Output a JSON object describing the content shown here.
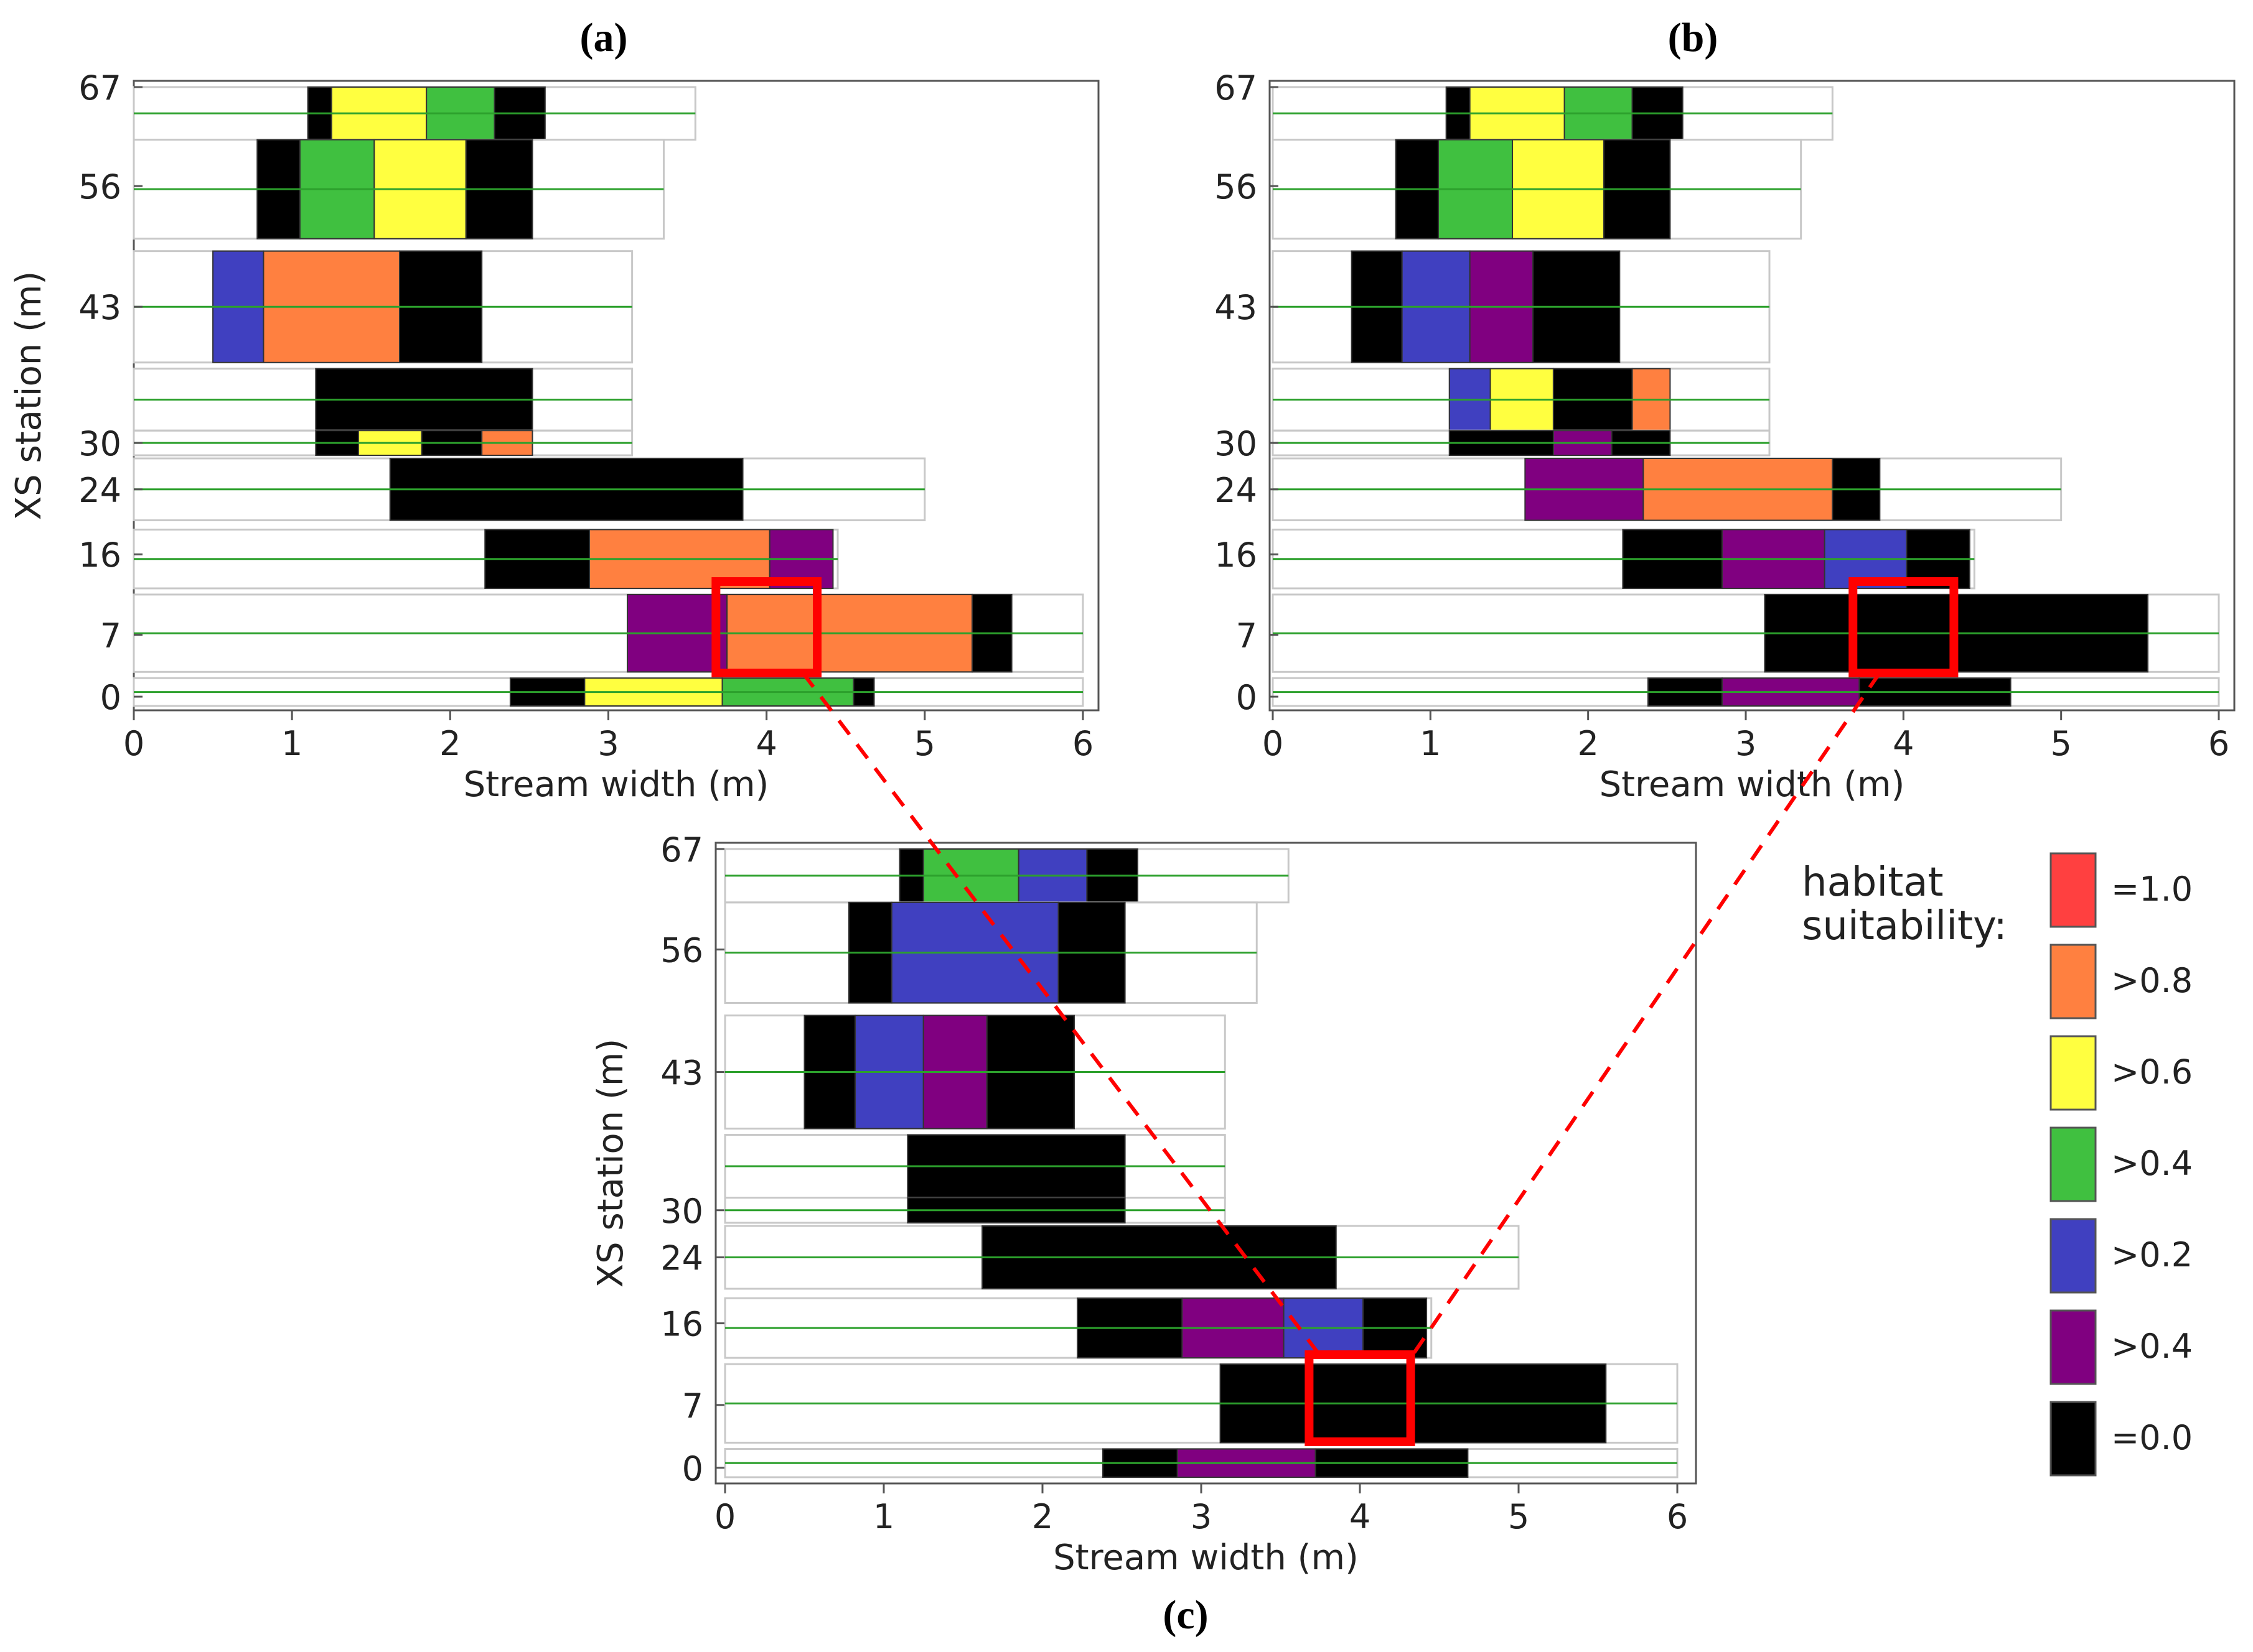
{
  "colors": {
    "c1": "#ff4040",
    "c08": "#ff8040",
    "c06": "#ffff40",
    "c04": "#40c040",
    "c02": "#4040c0",
    "c04p": "#800080",
    "c0": "#000000",
    "grid": "#c8c8c8",
    "green_line": "#2ca02c",
    "highlight": "#ff0000"
  },
  "legend": {
    "title_line1": "habitat",
    "title_line2": "suitability:",
    "items": [
      {
        "label": "=1.0",
        "color_key": "c1"
      },
      {
        "label": ">0.8",
        "color_key": "c08"
      },
      {
        "label": ">0.6",
        "color_key": "c06"
      },
      {
        "label": ">0.4",
        "color_key": "c04"
      },
      {
        "label": ">0.2",
        "color_key": "c02"
      },
      {
        "label": ">0.4",
        "color_key": "c04p"
      },
      {
        "label": "=0.0",
        "color_key": "c0"
      }
    ]
  },
  "chart_data": [
    {
      "type": "heatmap",
      "caption": "(a)",
      "xlabel": "Stream width (m)",
      "ylabel": "XS station (m)",
      "xlim": [
        0,
        6
      ],
      "xticks": [
        "0",
        "1",
        "2",
        "3",
        "4",
        "5",
        "6"
      ],
      "ytick_labels": [
        "67",
        "56",
        "43",
        "30",
        "24",
        "16",
        "7",
        "0"
      ],
      "rows": [
        {
          "cells": [
            [
              1.1,
              1.25,
              "c0"
            ],
            [
              1.25,
              1.85,
              "c06"
            ],
            [
              1.85,
              2.28,
              "c04"
            ],
            [
              2.28,
              2.6,
              "c0"
            ]
          ],
          "reach": [
            0,
            3.55
          ]
        },
        {
          "cells": [
            [
              0.78,
              1.05,
              "c0"
            ],
            [
              1.05,
              1.52,
              "c04"
            ],
            [
              1.52,
              2.1,
              "c06"
            ],
            [
              2.1,
              2.52,
              "c0"
            ]
          ],
          "reach": [
            0,
            3.35
          ]
        },
        {
          "cells": [
            [
              0.5,
              0.82,
              "c02"
            ],
            [
              0.82,
              1.68,
              "c08"
            ],
            [
              1.68,
              2.2,
              "c0"
            ]
          ],
          "reach": [
            0,
            3.15
          ]
        },
        {
          "cells": [
            [
              1.15,
              2.52,
              "c0"
            ]
          ],
          "reach": [
            0,
            3.15
          ]
        },
        {
          "cells": [
            [
              1.15,
              1.42,
              "c0"
            ],
            [
              1.42,
              1.82,
              "c06"
            ],
            [
              1.82,
              2.2,
              "c0"
            ],
            [
              2.2,
              2.52,
              "c08"
            ]
          ],
          "reach": [
            0,
            3.15
          ]
        },
        {
          "cells": [
            [
              1.62,
              3.85,
              "c0"
            ]
          ],
          "reach": [
            0,
            5.0
          ]
        },
        {
          "cells": [
            [
              2.22,
              2.88,
              "c0"
            ],
            [
              2.88,
              4.02,
              "c08"
            ],
            [
              4.02,
              4.42,
              "c04p"
            ]
          ],
          "reach": [
            0,
            4.45
          ]
        },
        {
          "cells": [
            [
              3.12,
              3.75,
              "c04p"
            ],
            [
              3.75,
              5.3,
              "c08"
            ],
            [
              5.3,
              5.55,
              "c0"
            ]
          ],
          "reach": [
            0,
            6.0
          ]
        },
        {
          "cells": [
            [
              2.38,
              2.85,
              "c0"
            ],
            [
              2.85,
              3.72,
              "c06"
            ],
            [
              3.72,
              4.55,
              "c04"
            ],
            [
              4.55,
              4.68,
              "c0"
            ]
          ],
          "reach": [
            0,
            6.0
          ]
        }
      ]
    },
    {
      "type": "heatmap",
      "caption": "(b)",
      "xlabel": "Stream width (m)",
      "ylabel": "",
      "xlim": [
        0,
        6
      ],
      "xticks": [
        "0",
        "1",
        "2",
        "3",
        "4",
        "5",
        "6"
      ],
      "ytick_labels": [
        "67",
        "56",
        "43",
        "30",
        "24",
        "16",
        "7",
        "0"
      ],
      "rows": [
        {
          "cells": [
            [
              1.1,
              1.25,
              "c0"
            ],
            [
              1.25,
              1.85,
              "c06"
            ],
            [
              1.85,
              2.28,
              "c04"
            ],
            [
              2.28,
              2.6,
              "c0"
            ]
          ],
          "reach": [
            0,
            3.55
          ]
        },
        {
          "cells": [
            [
              0.78,
              1.05,
              "c0"
            ],
            [
              1.05,
              1.52,
              "c04"
            ],
            [
              1.52,
              2.1,
              "c06"
            ],
            [
              2.1,
              2.52,
              "c0"
            ]
          ],
          "reach": [
            0,
            3.35
          ]
        },
        {
          "cells": [
            [
              0.5,
              0.82,
              "c0"
            ],
            [
              0.82,
              1.25,
              "c02"
            ],
            [
              1.25,
              1.65,
              "c04p"
            ],
            [
              1.65,
              2.2,
              "c0"
            ]
          ],
          "reach": [
            0,
            3.15
          ]
        },
        {
          "cells": [
            [
              1.12,
              1.38,
              "c02"
            ],
            [
              1.38,
              1.78,
              "c06"
            ],
            [
              1.78,
              2.28,
              "c0"
            ],
            [
              2.28,
              2.52,
              "c08"
            ]
          ],
          "reach": [
            0,
            3.15
          ]
        },
        {
          "cells": [
            [
              1.12,
              1.78,
              "c0"
            ],
            [
              1.78,
              2.15,
              "c04p"
            ],
            [
              2.15,
              2.52,
              "c0"
            ]
          ],
          "reach": [
            0,
            3.15
          ]
        },
        {
          "cells": [
            [
              1.6,
              2.35,
              "c04p"
            ],
            [
              2.35,
              3.55,
              "c08"
            ],
            [
              3.55,
              3.85,
              "c0"
            ]
          ],
          "reach": [
            0,
            5.0
          ]
        },
        {
          "cells": [
            [
              2.22,
              2.85,
              "c0"
            ],
            [
              2.85,
              3.5,
              "c04p"
            ],
            [
              3.5,
              4.02,
              "c02"
            ],
            [
              4.02,
              4.42,
              "c0"
            ]
          ],
          "reach": [
            0,
            4.45
          ]
        },
        {
          "cells": [
            [
              3.12,
              5.55,
              "c0"
            ]
          ],
          "reach": [
            0,
            6.0
          ]
        },
        {
          "cells": [
            [
              2.38,
              2.85,
              "c0"
            ],
            [
              2.85,
              3.72,
              "c04p"
            ],
            [
              3.72,
              4.68,
              "c0"
            ]
          ],
          "reach": [
            0,
            6.0
          ]
        }
      ]
    },
    {
      "type": "heatmap",
      "caption": "(c)",
      "xlabel": "Stream width (m)",
      "ylabel": "XS station (m)",
      "xlim": [
        0,
        6
      ],
      "xticks": [
        "0",
        "1",
        "2",
        "3",
        "4",
        "5",
        "6"
      ],
      "ytick_labels": [
        "67",
        "56",
        "43",
        "30",
        "24",
        "16",
        "7",
        "0"
      ],
      "rows": [
        {
          "cells": [
            [
              1.1,
              1.25,
              "c0"
            ],
            [
              1.25,
              1.85,
              "c04"
            ],
            [
              1.85,
              2.28,
              "c02"
            ],
            [
              2.28,
              2.6,
              "c0"
            ]
          ],
          "reach": [
            0,
            3.55
          ]
        },
        {
          "cells": [
            [
              0.78,
              1.05,
              "c0"
            ],
            [
              1.05,
              2.1,
              "c02"
            ],
            [
              2.1,
              2.52,
              "c0"
            ]
          ],
          "reach": [
            0,
            3.35
          ]
        },
        {
          "cells": [
            [
              0.5,
              0.82,
              "c0"
            ],
            [
              0.82,
              1.25,
              "c02"
            ],
            [
              1.25,
              1.65,
              "c04p"
            ],
            [
              1.65,
              2.2,
              "c0"
            ]
          ],
          "reach": [
            0,
            3.15
          ]
        },
        {
          "cells": [
            [
              1.15,
              2.52,
              "c0"
            ]
          ],
          "reach": [
            0,
            3.15
          ]
        },
        {
          "cells": [
            [
              1.15,
              2.52,
              "c0"
            ]
          ],
          "reach": [
            0,
            3.15
          ]
        },
        {
          "cells": [
            [
              1.62,
              3.85,
              "c0"
            ]
          ],
          "reach": [
            0,
            5.0
          ]
        },
        {
          "cells": [
            [
              2.22,
              2.88,
              "c0"
            ],
            [
              2.88,
              3.52,
              "c04p"
            ],
            [
              3.52,
              4.02,
              "c02"
            ],
            [
              4.02,
              4.42,
              "c0"
            ]
          ],
          "reach": [
            0,
            4.45
          ]
        },
        {
          "cells": [
            [
              3.12,
              5.55,
              "c0"
            ]
          ],
          "reach": [
            0,
            6.0
          ]
        },
        {
          "cells": [
            [
              2.38,
              2.85,
              "c0"
            ],
            [
              2.85,
              3.72,
              "c04p"
            ],
            [
              3.72,
              4.68,
              "c0"
            ]
          ],
          "reach": [
            0,
            6.0
          ]
        }
      ]
    }
  ]
}
